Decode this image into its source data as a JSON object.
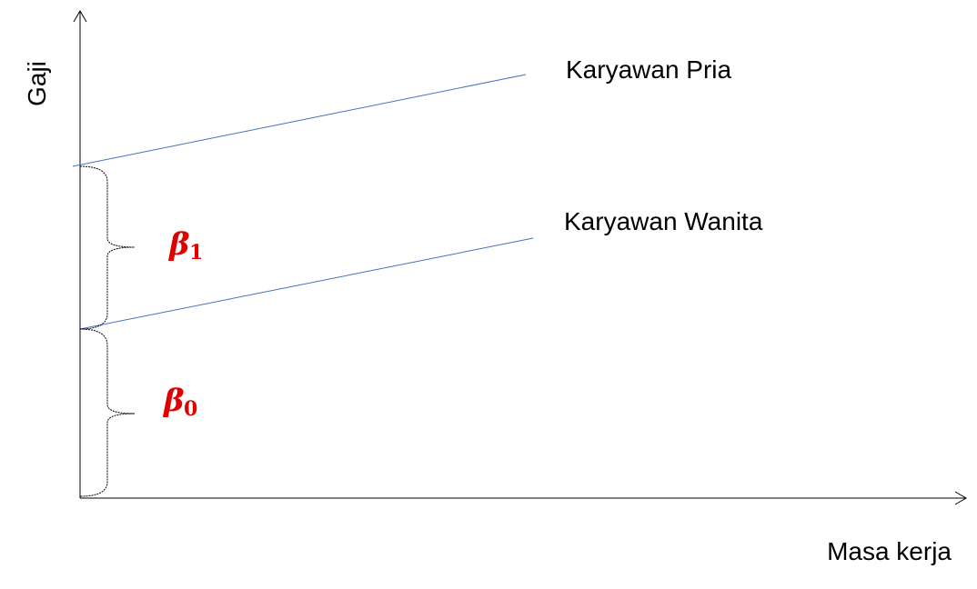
{
  "axes": {
    "y_label": "Gaji",
    "x_label": "Masa kerja"
  },
  "lines": [
    {
      "label": "Karyawan Pria"
    },
    {
      "label": "Karyawan Wanita"
    }
  ],
  "braces": [
    {
      "symbol": "β",
      "subscript": "1"
    },
    {
      "symbol": "β",
      "subscript": "0"
    }
  ]
}
